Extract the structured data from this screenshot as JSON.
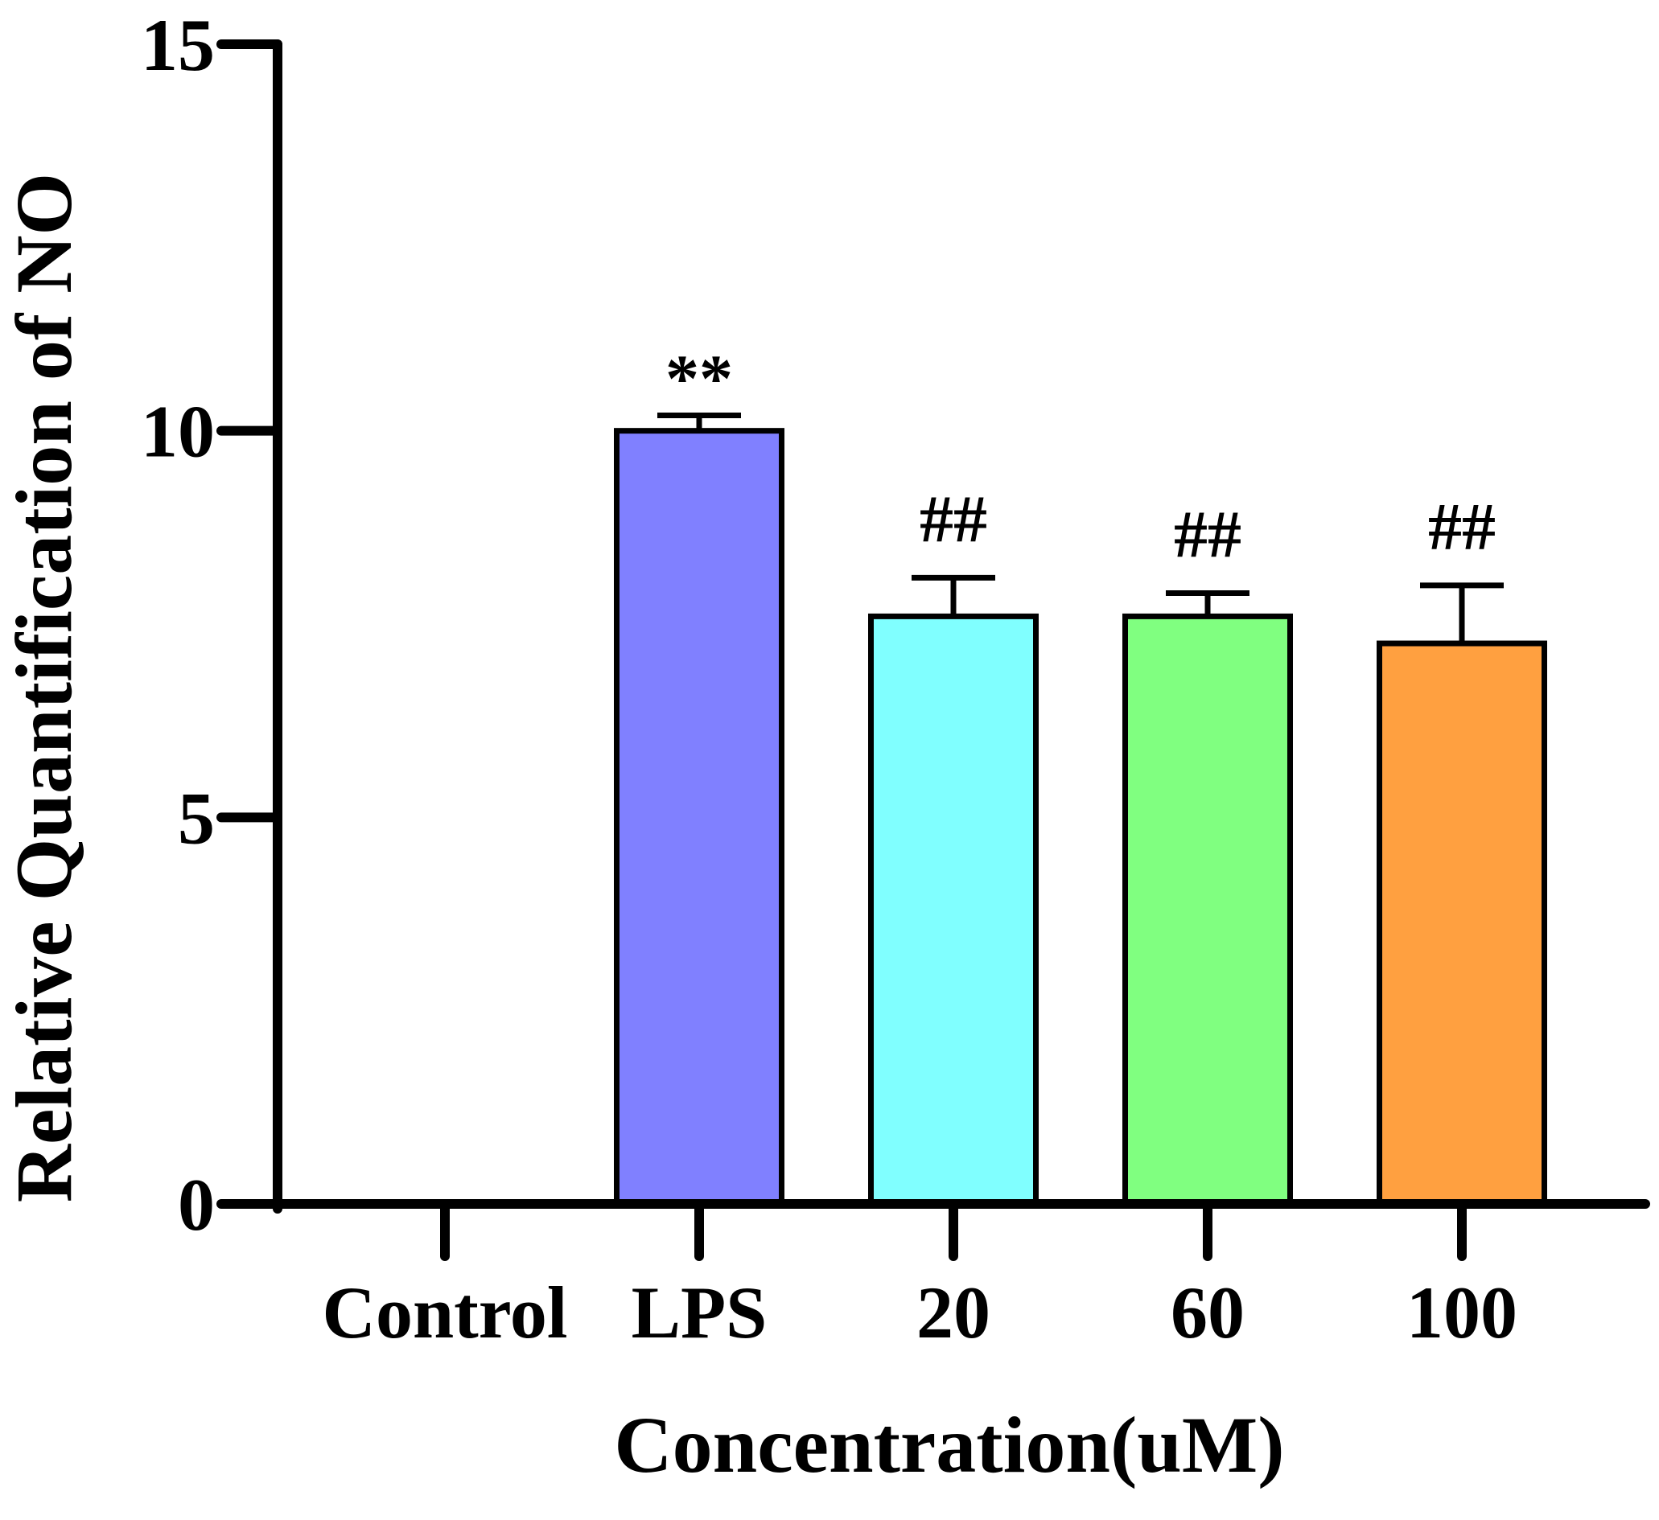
{
  "chart_data": {
    "type": "bar",
    "title": "",
    "xlabel": "Concentration(uM)",
    "ylabel": "Relative Quantification of NO",
    "ylim": [
      0,
      15
    ],
    "yticks": [
      "0",
      "5",
      "10",
      "15"
    ],
    "ytick_values": [
      0,
      5,
      10,
      15
    ],
    "categories": [
      "Control",
      "LPS",
      "20",
      "60",
      "100"
    ],
    "values": [
      0,
      10.0,
      7.6,
      7.6,
      7.25
    ],
    "errors": [
      0,
      0.2,
      0.5,
      0.3,
      0.75
    ],
    "annotations": [
      "",
      "**",
      "##",
      "##",
      "##"
    ],
    "colors": [
      "#ffffff",
      "#8080ff",
      "#80ffff",
      "#80ff80",
      "#ffa040"
    ],
    "grid": false,
    "legend": "none"
  }
}
